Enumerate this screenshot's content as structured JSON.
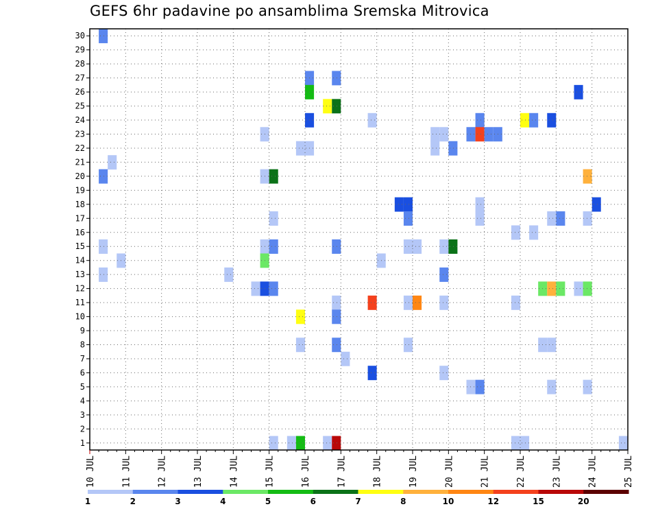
{
  "chart_data": {
    "type": "heatmap",
    "title": "GEFS 6hr padavine po ansamblima Sremska Mitrovica",
    "x_ticks": [
      "10 JUL",
      "11 JUL",
      "12 JUL",
      "13 JUL",
      "14 JUL",
      "15 JUL",
      "16 JUL",
      "17 JUL",
      "18 JUL",
      "19 JUL",
      "20 JUL",
      "21 JUL",
      "22 JUL",
      "23 JUL",
      "24 JUL",
      "25 JUL"
    ],
    "y_ticks": [
      "1",
      "2",
      "3",
      "4",
      "5",
      "6",
      "7",
      "8",
      "9",
      "10",
      "11",
      "12",
      "13",
      "14",
      "15",
      "16",
      "17",
      "18",
      "19",
      "20",
      "21",
      "22",
      "23",
      "24",
      "25",
      "26",
      "27",
      "28",
      "29",
      "30"
    ],
    "xlim_days": [
      10,
      25
    ],
    "ylim_members": [
      0,
      30
    ],
    "time_step_hours": 6,
    "grid": true,
    "legend": {
      "position": "bottom",
      "labels": [
        "1",
        "2",
        "3",
        "4",
        "5",
        "6",
        "7",
        "8",
        "10",
        "12",
        "15",
        "20"
      ],
      "colors": [
        "#b4c7f7",
        "#5a86ee",
        "#1a4fe0",
        "#6be865",
        "#14bc14",
        "#0b7218",
        "#ffff12",
        "#ffb13c",
        "#ff8613",
        "#f4411d",
        "#b90808",
        "#5c0000"
      ]
    },
    "cells": [
      {
        "d": 10.25,
        "m": 30,
        "c": 1
      },
      {
        "d": 16.0,
        "m": 27,
        "c": 1
      },
      {
        "d": 16.75,
        "m": 27,
        "c": 1
      },
      {
        "d": 16.0,
        "m": 26,
        "c": 4
      },
      {
        "d": 23.5,
        "m": 26,
        "c": 2
      },
      {
        "d": 16.5,
        "m": 25,
        "c": 6
      },
      {
        "d": 16.75,
        "m": 25,
        "c": 5
      },
      {
        "d": 16.0,
        "m": 24,
        "c": 2
      },
      {
        "d": 17.75,
        "m": 24,
        "c": 0
      },
      {
        "d": 20.75,
        "m": 24,
        "c": 1
      },
      {
        "d": 22.0,
        "m": 24,
        "c": 6
      },
      {
        "d": 22.25,
        "m": 24,
        "c": 1
      },
      {
        "d": 22.75,
        "m": 24,
        "c": 2
      },
      {
        "d": 14.75,
        "m": 23,
        "c": 0
      },
      {
        "d": 19.5,
        "m": 23,
        "c": 0
      },
      {
        "d": 19.75,
        "m": 23,
        "c": 0
      },
      {
        "d": 20.5,
        "m": 23,
        "c": 1
      },
      {
        "d": 20.75,
        "m": 23,
        "c": 9
      },
      {
        "d": 21.0,
        "m": 23,
        "c": 1
      },
      {
        "d": 21.25,
        "m": 23,
        "c": 1
      },
      {
        "d": 15.75,
        "m": 22,
        "c": 0
      },
      {
        "d": 16.0,
        "m": 22,
        "c": 0
      },
      {
        "d": 19.5,
        "m": 22,
        "c": 0
      },
      {
        "d": 20.0,
        "m": 22,
        "c": 1
      },
      {
        "d": 10.5,
        "m": 21,
        "c": 0
      },
      {
        "d": 10.25,
        "m": 20,
        "c": 1
      },
      {
        "d": 14.75,
        "m": 20,
        "c": 0
      },
      {
        "d": 15.0,
        "m": 20,
        "c": 5
      },
      {
        "d": 23.75,
        "m": 20,
        "c": 7
      },
      {
        "d": 18.5,
        "m": 18,
        "c": 2
      },
      {
        "d": 18.75,
        "m": 18,
        "c": 2
      },
      {
        "d": 20.75,
        "m": 18,
        "c": 0
      },
      {
        "d": 24.0,
        "m": 18,
        "c": 2
      },
      {
        "d": 15.0,
        "m": 17,
        "c": 0
      },
      {
        "d": 18.75,
        "m": 17,
        "c": 1
      },
      {
        "d": 20.75,
        "m": 17,
        "c": 0
      },
      {
        "d": 22.75,
        "m": 17,
        "c": 0
      },
      {
        "d": 23.0,
        "m": 17,
        "c": 1
      },
      {
        "d": 23.75,
        "m": 17,
        "c": 0
      },
      {
        "d": 21.75,
        "m": 16,
        "c": 0
      },
      {
        "d": 22.25,
        "m": 16,
        "c": 0
      },
      {
        "d": 10.25,
        "m": 15,
        "c": 0
      },
      {
        "d": 14.75,
        "m": 15,
        "c": 0
      },
      {
        "d": 15.0,
        "m": 15,
        "c": 1
      },
      {
        "d": 16.75,
        "m": 15,
        "c": 1
      },
      {
        "d": 18.75,
        "m": 15,
        "c": 0
      },
      {
        "d": 19.0,
        "m": 15,
        "c": 0
      },
      {
        "d": 19.75,
        "m": 15,
        "c": 0
      },
      {
        "d": 20.0,
        "m": 15,
        "c": 5
      },
      {
        "d": 14.75,
        "m": 14,
        "c": 3
      },
      {
        "d": 10.75,
        "m": 14,
        "c": 0
      },
      {
        "d": 18.0,
        "m": 14,
        "c": 0
      },
      {
        "d": 10.25,
        "m": 13,
        "c": 0
      },
      {
        "d": 13.75,
        "m": 13,
        "c": 0
      },
      {
        "d": 19.75,
        "m": 13,
        "c": 1
      },
      {
        "d": 14.5,
        "m": 12,
        "c": 0
      },
      {
        "d": 14.75,
        "m": 12,
        "c": 2
      },
      {
        "d": 15.0,
        "m": 12,
        "c": 1
      },
      {
        "d": 22.5,
        "m": 12,
        "c": 3
      },
      {
        "d": 22.75,
        "m": 12,
        "c": 7
      },
      {
        "d": 23.0,
        "m": 12,
        "c": 3
      },
      {
        "d": 23.5,
        "m": 12,
        "c": 0
      },
      {
        "d": 23.75,
        "m": 12,
        "c": 3
      },
      {
        "d": 16.75,
        "m": 11,
        "c": 0
      },
      {
        "d": 17.75,
        "m": 11,
        "c": 9
      },
      {
        "d": 18.75,
        "m": 11,
        "c": 0
      },
      {
        "d": 19.0,
        "m": 11,
        "c": 8
      },
      {
        "d": 19.75,
        "m": 11,
        "c": 0
      },
      {
        "d": 21.75,
        "m": 11,
        "c": 0
      },
      {
        "d": 15.75,
        "m": 10,
        "c": 6
      },
      {
        "d": 16.75,
        "m": 10,
        "c": 1
      },
      {
        "d": 15.75,
        "m": 8,
        "c": 0
      },
      {
        "d": 16.75,
        "m": 8,
        "c": 1
      },
      {
        "d": 18.75,
        "m": 8,
        "c": 0
      },
      {
        "d": 22.5,
        "m": 8,
        "c": 0
      },
      {
        "d": 22.75,
        "m": 8,
        "c": 0
      },
      {
        "d": 17.0,
        "m": 7,
        "c": 0
      },
      {
        "d": 17.75,
        "m": 6,
        "c": 2
      },
      {
        "d": 19.75,
        "m": 6,
        "c": 0
      },
      {
        "d": 20.5,
        "m": 5,
        "c": 0
      },
      {
        "d": 20.75,
        "m": 5,
        "c": 1
      },
      {
        "d": 22.75,
        "m": 5,
        "c": 0
      },
      {
        "d": 23.75,
        "m": 5,
        "c": 0
      },
      {
        "d": 15.0,
        "m": 1,
        "c": 0
      },
      {
        "d": 15.5,
        "m": 1,
        "c": 0
      },
      {
        "d": 15.75,
        "m": 1,
        "c": 4
      },
      {
        "d": 16.5,
        "m": 1,
        "c": 0
      },
      {
        "d": 16.75,
        "m": 1,
        "c": 10
      },
      {
        "d": 21.75,
        "m": 1,
        "c": 0
      },
      {
        "d": 22.0,
        "m": 1,
        "c": 0
      },
      {
        "d": 24.75,
        "m": 1,
        "c": 0
      }
    ]
  }
}
